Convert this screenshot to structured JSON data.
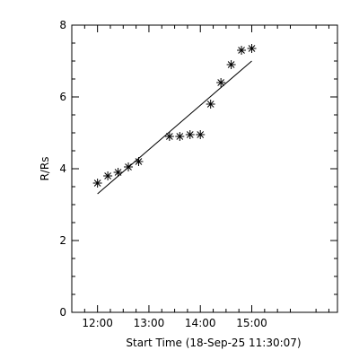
{
  "chart_data": {
    "type": "scatter",
    "xlabel": "Start Time (18-Sep-25 11:30:07)",
    "ylabel": "R/Rs",
    "xlim": [
      "11:30",
      "16:40"
    ],
    "ylim": [
      0,
      8
    ],
    "x_ticks": [
      "12:00",
      "13:00",
      "14:00",
      "15:00"
    ],
    "y_ticks": [
      0,
      2,
      4,
      6,
      8
    ],
    "grid": false,
    "series": [
      {
        "marker": "asterisk",
        "points": [
          {
            "x": "12:00",
            "y": 3.6
          },
          {
            "x": "12:12",
            "y": 3.8
          },
          {
            "x": "12:24",
            "y": 3.9
          },
          {
            "x": "12:36",
            "y": 4.05
          },
          {
            "x": "12:48",
            "y": 4.2
          },
          {
            "x": "13:24",
            "y": 4.9
          },
          {
            "x": "13:36",
            "y": 4.9
          },
          {
            "x": "13:48",
            "y": 4.95
          },
          {
            "x": "14:00",
            "y": 4.95
          },
          {
            "x": "14:12",
            "y": 5.8
          },
          {
            "x": "14:24",
            "y": 6.4
          },
          {
            "x": "14:36",
            "y": 6.9
          },
          {
            "x": "14:48",
            "y": 7.3
          },
          {
            "x": "15:00",
            "y": 7.35
          }
        ]
      }
    ],
    "fit_line": {
      "x": [
        "12:00",
        "15:00"
      ],
      "y": [
        3.3,
        7.0
      ]
    }
  }
}
